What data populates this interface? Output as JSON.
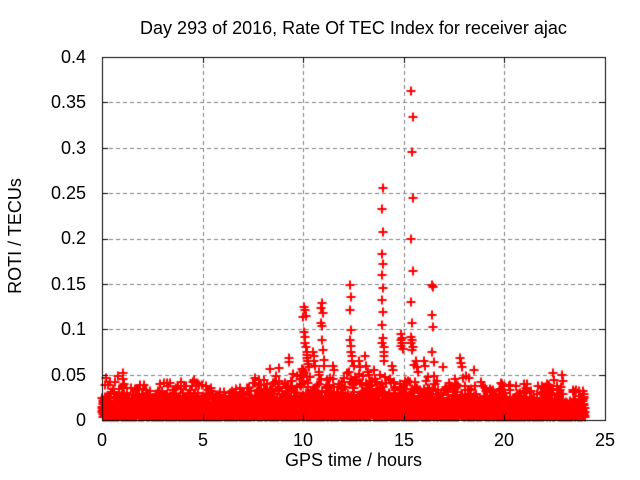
{
  "chart_data": {
    "type": "scatter",
    "title": "Day 293 of 2016, Rate Of TEC Index for receiver ajac",
    "xlabel": "GPS time / hours",
    "ylabel": "ROTI / TECUs",
    "xlim": [
      0,
      25
    ],
    "ylim": [
      0,
      0.4
    ],
    "xticks": [
      0,
      5,
      10,
      15,
      20,
      25
    ],
    "yticks": [
      0,
      0.05,
      0.1,
      0.15,
      0.2,
      0.25,
      0.3,
      0.35,
      0.4
    ],
    "xtick_labels": [
      "0",
      "5",
      "10",
      "15",
      "20",
      "25"
    ],
    "ytick_labels": [
      "0",
      "0.05",
      "0.1",
      "0.15",
      "0.2",
      "0.25",
      "0.3",
      "0.35",
      "0.4"
    ],
    "grid": {
      "show": true,
      "color": "#808080",
      "dash": [
        4,
        3
      ]
    },
    "axis_color": "#000000",
    "background_color": "#ffffff",
    "tick_length": 6,
    "marker": {
      "shape": "plus",
      "color": "#ff0000",
      "size": 9,
      "stroke_width": 2
    },
    "legend": {
      "shown": false
    },
    "series_name": "ROTI",
    "baseline_band": {
      "description": "dense 30-s ROTI noise band hugging 0-0.05 TECUs from 0 to 24 h",
      "hours_span": [
        0,
        24
      ],
      "epochs_per_hour": 120,
      "points_per_epoch": 2,
      "y_floor": 0.003,
      "tail_scale_fraction": 0.2,
      "seed": 42,
      "envelope": [
        [
          0,
          0.05
        ],
        [
          0.5,
          0.045
        ],
        [
          1,
          0.052
        ],
        [
          1.5,
          0.042
        ],
        [
          2,
          0.04
        ],
        [
          2.5,
          0.038
        ],
        [
          3,
          0.042
        ],
        [
          3.5,
          0.045
        ],
        [
          4,
          0.042
        ],
        [
          4.5,
          0.048
        ],
        [
          5,
          0.04
        ],
        [
          5.5,
          0.038
        ],
        [
          6,
          0.042
        ],
        [
          6.5,
          0.04
        ],
        [
          7,
          0.044
        ],
        [
          7.5,
          0.045
        ],
        [
          8,
          0.05
        ],
        [
          8.5,
          0.05
        ],
        [
          9,
          0.052
        ],
        [
          9.5,
          0.055
        ],
        [
          10,
          0.058
        ],
        [
          10.5,
          0.055
        ],
        [
          11,
          0.056
        ],
        [
          11.5,
          0.052
        ],
        [
          12,
          0.055
        ],
        [
          12.5,
          0.056
        ],
        [
          13,
          0.052
        ],
        [
          13.5,
          0.055
        ],
        [
          14,
          0.056
        ],
        [
          14.5,
          0.052
        ],
        [
          15,
          0.055
        ],
        [
          15.5,
          0.056
        ],
        [
          16,
          0.05
        ],
        [
          16.5,
          0.05
        ],
        [
          17,
          0.046
        ],
        [
          17.5,
          0.048
        ],
        [
          18,
          0.05
        ],
        [
          18.5,
          0.044
        ],
        [
          19,
          0.042
        ],
        [
          19.5,
          0.048
        ],
        [
          20,
          0.042
        ],
        [
          20.5,
          0.04
        ],
        [
          21,
          0.044
        ],
        [
          21.5,
          0.042
        ],
        [
          22,
          0.04
        ],
        [
          22.5,
          0.042
        ],
        [
          23,
          0.036
        ],
        [
          23.5,
          0.034
        ],
        [
          24,
          0.032
        ]
      ]
    },
    "spikes": [
      [
        1.05,
        0.052
      ],
      [
        8.35,
        0.056
      ],
      [
        8.8,
        0.057
      ],
      [
        9.3,
        0.068
      ],
      [
        9.3,
        0.064
      ],
      [
        10.0,
        0.113
      ],
      [
        10.05,
        0.125
      ],
      [
        10.05,
        0.097
      ],
      [
        10.1,
        0.121
      ],
      [
        10.1,
        0.092
      ],
      [
        10.1,
        0.085
      ],
      [
        10.15,
        0.115
      ],
      [
        10.15,
        0.08
      ],
      [
        10.2,
        0.075
      ],
      [
        10.2,
        0.072
      ],
      [
        10.2,
        0.068
      ],
      [
        10.25,
        0.065
      ],
      [
        10.25,
        0.062
      ],
      [
        10.3,
        0.058
      ],
      [
        10.5,
        0.075
      ],
      [
        10.55,
        0.07
      ],
      [
        10.55,
        0.065
      ],
      [
        10.6,
        0.06
      ],
      [
        10.9,
        0.123
      ],
      [
        10.9,
        0.107
      ],
      [
        10.95,
        0.129
      ],
      [
        10.95,
        0.104
      ],
      [
        10.95,
        0.088
      ],
      [
        11.0,
        0.118
      ],
      [
        11.0,
        0.077
      ],
      [
        11.05,
        0.066
      ],
      [
        11.05,
        0.06
      ],
      [
        11.5,
        0.06
      ],
      [
        11.55,
        0.055
      ],
      [
        12.35,
        0.149
      ],
      [
        12.35,
        0.121
      ],
      [
        12.35,
        0.088
      ],
      [
        12.4,
        0.136
      ],
      [
        12.4,
        0.099
      ],
      [
        12.4,
        0.082
      ],
      [
        12.4,
        0.075
      ],
      [
        12.45,
        0.07
      ],
      [
        12.45,
        0.065
      ],
      [
        12.5,
        0.06
      ],
      [
        12.75,
        0.065
      ],
      [
        12.8,
        0.058
      ],
      [
        13.05,
        0.07
      ],
      [
        13.1,
        0.06
      ],
      [
        13.5,
        0.055
      ],
      [
        13.9,
        0.232
      ],
      [
        13.9,
        0.183
      ],
      [
        13.9,
        0.16
      ],
      [
        13.9,
        0.132
      ],
      [
        13.9,
        0.105
      ],
      [
        13.9,
        0.085
      ],
      [
        13.95,
        0.256
      ],
      [
        13.95,
        0.207
      ],
      [
        13.95,
        0.172
      ],
      [
        13.95,
        0.145
      ],
      [
        13.95,
        0.119
      ],
      [
        13.95,
        0.09
      ],
      [
        14.0,
        0.08
      ],
      [
        14.0,
        0.075
      ],
      [
        14.0,
        0.07
      ],
      [
        14.0,
        0.065
      ],
      [
        14.4,
        0.06
      ],
      [
        14.45,
        0.055
      ],
      [
        14.85,
        0.095
      ],
      [
        14.85,
        0.088
      ],
      [
        14.85,
        0.082
      ],
      [
        14.9,
        0.09
      ],
      [
        14.9,
        0.085
      ],
      [
        14.95,
        0.078
      ],
      [
        15.35,
        0.362
      ],
      [
        15.35,
        0.199
      ],
      [
        15.35,
        0.13
      ],
      [
        15.35,
        0.092
      ],
      [
        15.35,
        0.085
      ],
      [
        15.4,
        0.295
      ],
      [
        15.4,
        0.107
      ],
      [
        15.4,
        0.088
      ],
      [
        15.4,
        0.077
      ],
      [
        15.45,
        0.334
      ],
      [
        15.45,
        0.245
      ],
      [
        15.45,
        0.164
      ],
      [
        15.45,
        0.08
      ],
      [
        15.5,
        0.061
      ],
      [
        15.6,
        0.065
      ],
      [
        15.65,
        0.058
      ],
      [
        16.0,
        0.065
      ],
      [
        16.05,
        0.06
      ],
      [
        16.4,
        0.149
      ],
      [
        16.4,
        0.116
      ],
      [
        16.4,
        0.075
      ],
      [
        16.45,
        0.147
      ],
      [
        16.45,
        0.103
      ],
      [
        16.5,
        0.064
      ],
      [
        16.95,
        0.058
      ],
      [
        17.8,
        0.068
      ],
      [
        17.85,
        0.063
      ],
      [
        17.9,
        0.058
      ],
      [
        18.5,
        0.055
      ],
      [
        22.4,
        0.052
      ],
      [
        22.45,
        0.044
      ],
      [
        22.85,
        0.05
      ],
      [
        22.9,
        0.043
      ]
    ]
  }
}
